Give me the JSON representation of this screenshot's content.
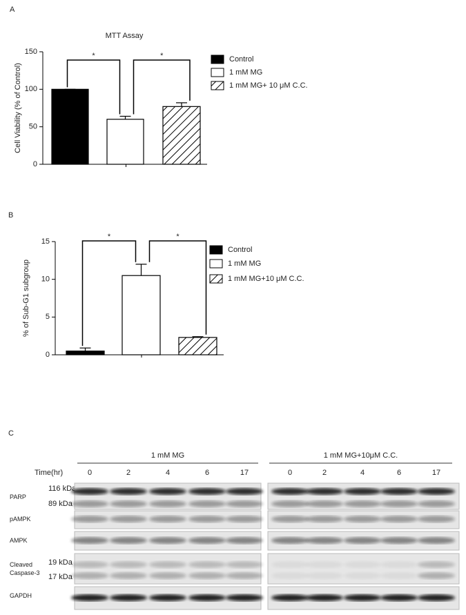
{
  "chart_data": [
    {
      "type": "bar",
      "panel_label": "A",
      "title": "MTT Assay",
      "ylabel": "Cell Viability (% of Control)",
      "ylim": [
        0,
        150
      ],
      "yticks": [
        0,
        50,
        100,
        150
      ],
      "series": [
        {
          "name": "Control",
          "color": "#000000",
          "fill": "solid",
          "values": [
            100
          ],
          "errors": [
            0
          ]
        },
        {
          "name": "1 mM MG",
          "color": "#ffffff",
          "fill": "solid",
          "values": [
            60
          ],
          "errors": [
            4
          ]
        },
        {
          "name": "1 mM MG+ 10 μM C.C.",
          "color": "#ffffff",
          "fill": "hatch",
          "values": [
            77
          ],
          "errors": [
            5
          ]
        }
      ],
      "annotations": [
        "*",
        "*"
      ]
    },
    {
      "type": "bar",
      "panel_label": "B",
      "ylabel": "% of Sub-G1 subgroup",
      "ylim": [
        0,
        15
      ],
      "yticks": [
        0,
        5,
        10,
        15
      ],
      "series": [
        {
          "name": "Control",
          "color": "#000000",
          "fill": "solid",
          "values": [
            0.5
          ],
          "errors": [
            0.4
          ]
        },
        {
          "name": "1 mM MG",
          "color": "#ffffff",
          "fill": "solid",
          "values": [
            10.5
          ],
          "errors": [
            1.5
          ]
        },
        {
          "name": "1 mM MG+10 μM C.C.",
          "color": "#ffffff",
          "fill": "hatch",
          "values": [
            2.3
          ],
          "errors": [
            0.1
          ]
        }
      ],
      "annotations": [
        "*",
        "*"
      ]
    }
  ],
  "blot": {
    "panel_label": "C",
    "groups": [
      "1 mM MG",
      "1 mM MG+10μM C.C."
    ],
    "time_label": "Time(hr)",
    "times": [
      0,
      2,
      4,
      6,
      17
    ],
    "rows": [
      {
        "label": "PARP",
        "markers": [
          "116 kDa",
          "89 kDa"
        ]
      },
      {
        "label": "pAMPK",
        "markers": []
      },
      {
        "label": "AMPK",
        "markers": []
      },
      {
        "label": "Cleaved Caspase-3",
        "markers": [
          "19 kDa",
          "17 kDa"
        ]
      },
      {
        "label": "GAPDH",
        "markers": []
      }
    ]
  }
}
